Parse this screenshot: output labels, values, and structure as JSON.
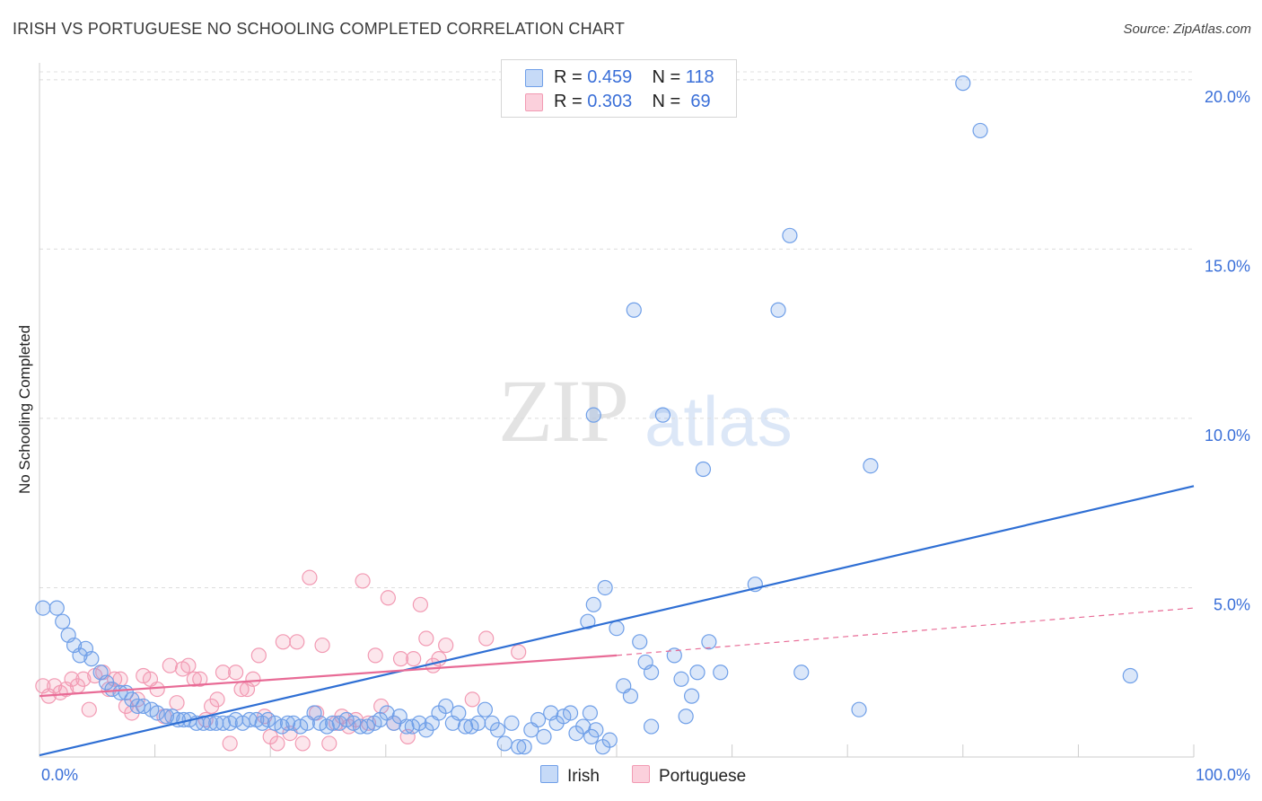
{
  "header": {
    "title": "IRISH VS PORTUGUESE NO SCHOOLING COMPLETED CORRELATION CHART",
    "source": "Source: ZipAtlas.com"
  },
  "watermark": {
    "zip": "ZIP",
    "atlas": "atlas"
  },
  "legend": {
    "irish": {
      "r_label": "R =",
      "r_value": "0.459",
      "n_label": "N =",
      "n_value": "118",
      "color": "#6f9fe8"
    },
    "portuguese": {
      "r_label": "R =",
      "r_value": "0.303",
      "n_label": "N =",
      "n_value": "69",
      "color": "#f29ab3"
    }
  },
  "bottom_legend": {
    "irish": "Irish",
    "portuguese": "Portuguese"
  },
  "chart_data": {
    "type": "scatter",
    "ylabel": "No Schooling Completed",
    "x_tick_labels": [
      "0.0%",
      "100.0%"
    ],
    "y_tick_labels": [
      "5.0%",
      "10.0%",
      "15.0%",
      "20.0%"
    ],
    "y_ticks": [
      5,
      10,
      15,
      20
    ],
    "xlim": [
      0,
      100
    ],
    "ylim": [
      0,
      20.5
    ],
    "grid": true,
    "colors": {
      "irish": "#6f9fe8",
      "irish_line": "#2f6fd4",
      "portuguese": "#f29ab3",
      "portuguese_line": "#e86b96",
      "tick": "#3a6fd8"
    },
    "series": [
      {
        "name": "Irish",
        "trend": {
          "x0": 0,
          "y0": 0.05,
          "x1": 100,
          "y1": 8.0
        },
        "points": [
          [
            0.3,
            4.4
          ],
          [
            1.5,
            4.4
          ],
          [
            2.0,
            4.0
          ],
          [
            2.5,
            3.6
          ],
          [
            3.0,
            3.3
          ],
          [
            3.5,
            3.0
          ],
          [
            4.0,
            3.2
          ],
          [
            4.5,
            2.9
          ],
          [
            5.3,
            2.5
          ],
          [
            5.8,
            2.2
          ],
          [
            6.3,
            2.0
          ],
          [
            7.0,
            1.9
          ],
          [
            7.5,
            1.9
          ],
          [
            8.0,
            1.7
          ],
          [
            8.5,
            1.5
          ],
          [
            9.0,
            1.5
          ],
          [
            9.7,
            1.4
          ],
          [
            10.2,
            1.3
          ],
          [
            11.0,
            1.2
          ],
          [
            11.5,
            1.2
          ],
          [
            12.0,
            1.1
          ],
          [
            12.5,
            1.1
          ],
          [
            13.0,
            1.1
          ],
          [
            13.6,
            1.0
          ],
          [
            14.2,
            1.0
          ],
          [
            14.8,
            1.0
          ],
          [
            15.3,
            1.0
          ],
          [
            15.9,
            1.0
          ],
          [
            16.5,
            1.0
          ],
          [
            17.0,
            1.1
          ],
          [
            17.6,
            1.0
          ],
          [
            18.2,
            1.1
          ],
          [
            18.8,
            1.1
          ],
          [
            19.3,
            1.0
          ],
          [
            19.8,
            1.1
          ],
          [
            20.4,
            1.0
          ],
          [
            21.0,
            0.9
          ],
          [
            21.5,
            1.0
          ],
          [
            22.0,
            1.0
          ],
          [
            22.6,
            0.9
          ],
          [
            23.2,
            1.0
          ],
          [
            23.8,
            1.3
          ],
          [
            24.3,
            1.0
          ],
          [
            24.9,
            0.9
          ],
          [
            25.4,
            1.0
          ],
          [
            26.0,
            1.0
          ],
          [
            26.6,
            1.1
          ],
          [
            27.2,
            1.0
          ],
          [
            27.8,
            0.9
          ],
          [
            28.4,
            0.9
          ],
          [
            29.0,
            1.0
          ],
          [
            29.5,
            1.1
          ],
          [
            30.1,
            1.3
          ],
          [
            30.7,
            1.0
          ],
          [
            31.2,
            1.2
          ],
          [
            31.8,
            0.9
          ],
          [
            32.3,
            0.9
          ],
          [
            32.9,
            1.0
          ],
          [
            33.5,
            0.8
          ],
          [
            34.0,
            1.0
          ],
          [
            34.6,
            1.3
          ],
          [
            35.2,
            1.5
          ],
          [
            35.8,
            1.0
          ],
          [
            36.3,
            1.3
          ],
          [
            36.9,
            0.9
          ],
          [
            37.4,
            0.9
          ],
          [
            38.0,
            1.0
          ],
          [
            38.6,
            1.4
          ],
          [
            39.2,
            1.0
          ],
          [
            39.7,
            0.8
          ],
          [
            40.3,
            0.4
          ],
          [
            40.9,
            1.0
          ],
          [
            41.5,
            0.3
          ],
          [
            42.0,
            0.3
          ],
          [
            42.6,
            0.8
          ],
          [
            43.2,
            1.1
          ],
          [
            43.7,
            0.6
          ],
          [
            44.3,
            1.3
          ],
          [
            44.8,
            1.0
          ],
          [
            45.4,
            1.2
          ],
          [
            46.0,
            1.3
          ],
          [
            46.5,
            0.7
          ],
          [
            47.1,
            0.9
          ],
          [
            47.7,
            1.3
          ],
          [
            48.2,
            0.8
          ],
          [
            48.8,
            0.3
          ],
          [
            49.4,
            0.5
          ],
          [
            47.5,
            4.0
          ],
          [
            48.0,
            4.5
          ],
          [
            49.0,
            5.0
          ],
          [
            50.0,
            3.8
          ],
          [
            50.6,
            2.1
          ],
          [
            51.2,
            1.8
          ],
          [
            52.0,
            3.4
          ],
          [
            52.5,
            2.8
          ],
          [
            53.0,
            2.5
          ],
          [
            55.0,
            3.0
          ],
          [
            55.6,
            2.3
          ],
          [
            56.5,
            1.8
          ],
          [
            57.0,
            2.5
          ],
          [
            58.0,
            3.4
          ],
          [
            59.0,
            2.5
          ],
          [
            62.0,
            5.1
          ],
          [
            66.0,
            2.5
          ],
          [
            71.0,
            1.4
          ],
          [
            94.5,
            2.4
          ],
          [
            53.0,
            0.9
          ],
          [
            51.5,
            13.2
          ],
          [
            54.0,
            10.1
          ],
          [
            48.0,
            10.1
          ],
          [
            57.5,
            8.5
          ],
          [
            64.0,
            13.2
          ],
          [
            65.0,
            15.4
          ],
          [
            72.0,
            8.6
          ],
          [
            80.0,
            19.9
          ],
          [
            81.5,
            18.5
          ],
          [
            56.0,
            1.2
          ],
          [
            47.8,
            0.6
          ]
        ]
      },
      {
        "name": "Portuguese",
        "trend": {
          "x0": 0,
          "y0": 1.8,
          "x1": 50,
          "y1": 3.0,
          "dash_x1": 100,
          "dash_y1": 4.4
        },
        "points": [
          [
            0.3,
            2.1
          ],
          [
            0.8,
            1.8
          ],
          [
            1.3,
            2.1
          ],
          [
            1.8,
            1.9
          ],
          [
            2.3,
            2.0
          ],
          [
            2.8,
            2.3
          ],
          [
            3.3,
            2.1
          ],
          [
            3.8,
            2.3
          ],
          [
            4.3,
            1.4
          ],
          [
            4.8,
            2.4
          ],
          [
            5.5,
            2.5
          ],
          [
            6.0,
            2.0
          ],
          [
            6.5,
            2.3
          ],
          [
            7.0,
            2.3
          ],
          [
            7.5,
            1.5
          ],
          [
            8.0,
            1.3
          ],
          [
            8.5,
            1.7
          ],
          [
            9.0,
            2.4
          ],
          [
            9.6,
            2.3
          ],
          [
            10.2,
            2.0
          ],
          [
            10.8,
            1.2
          ],
          [
            11.3,
            2.7
          ],
          [
            11.9,
            1.6
          ],
          [
            12.4,
            2.6
          ],
          [
            12.9,
            2.7
          ],
          [
            13.4,
            2.3
          ],
          [
            13.9,
            2.3
          ],
          [
            14.4,
            1.1
          ],
          [
            14.9,
            1.5
          ],
          [
            15.4,
            1.7
          ],
          [
            15.9,
            2.5
          ],
          [
            16.5,
            0.4
          ],
          [
            17.0,
            2.5
          ],
          [
            17.5,
            2.0
          ],
          [
            18.0,
            2.0
          ],
          [
            18.5,
            2.3
          ],
          [
            19.0,
            3.0
          ],
          [
            19.5,
            1.2
          ],
          [
            20.0,
            0.6
          ],
          [
            20.6,
            0.4
          ],
          [
            21.1,
            3.4
          ],
          [
            21.7,
            0.7
          ],
          [
            22.3,
            3.4
          ],
          [
            22.8,
            0.4
          ],
          [
            23.4,
            5.3
          ],
          [
            24.0,
            1.3
          ],
          [
            24.5,
            3.3
          ],
          [
            25.1,
            0.4
          ],
          [
            25.7,
            1.0
          ],
          [
            26.2,
            1.2
          ],
          [
            26.8,
            0.9
          ],
          [
            27.4,
            1.1
          ],
          [
            28.0,
            5.2
          ],
          [
            28.5,
            1.0
          ],
          [
            29.1,
            3.0
          ],
          [
            29.6,
            1.5
          ],
          [
            30.2,
            4.7
          ],
          [
            30.7,
            1.0
          ],
          [
            31.3,
            2.9
          ],
          [
            31.9,
            0.6
          ],
          [
            32.4,
            2.9
          ],
          [
            33.0,
            4.5
          ],
          [
            33.5,
            3.5
          ],
          [
            34.1,
            2.7
          ],
          [
            34.6,
            2.9
          ],
          [
            35.2,
            3.3
          ],
          [
            37.5,
            1.7
          ],
          [
            38.7,
            3.5
          ],
          [
            41.5,
            3.1
          ]
        ]
      }
    ]
  }
}
